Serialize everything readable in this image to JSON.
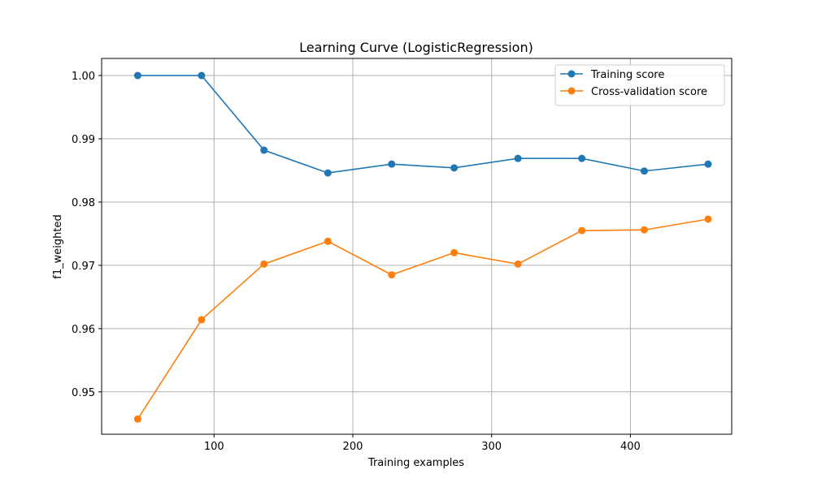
{
  "chart_data": {
    "type": "line",
    "title": "Learning Curve (LogisticRegression)",
    "xlabel": "Training examples",
    "ylabel": "f1_weighted",
    "xlim": [
      19,
      473
    ],
    "ylim": [
      0.9433,
      1.0027
    ],
    "xticks": [
      100,
      200,
      300,
      400
    ],
    "xtick_labels": [
      "100",
      "200",
      "300",
      "400"
    ],
    "yticks": [
      0.95,
      0.96,
      0.97,
      0.98,
      0.99,
      1.0
    ],
    "ytick_labels": [
      "0.95",
      "0.96",
      "0.97",
      "0.98",
      "0.99",
      "1.00"
    ],
    "grid": true,
    "legend_position": "top-right",
    "x": [
      45,
      91,
      136,
      182,
      228,
      273,
      319,
      365,
      410,
      456
    ],
    "series": [
      {
        "name": "Training score",
        "color": "#1f77b4",
        "marker": "circle",
        "values": [
          1.0,
          1.0,
          0.9882,
          0.9846,
          0.986,
          0.9854,
          0.9869,
          0.9869,
          0.9849,
          0.986
        ]
      },
      {
        "name": "Cross-validation score",
        "color": "#ff7f0e",
        "marker": "circle",
        "values": [
          0.9457,
          0.9614,
          0.9702,
          0.9738,
          0.9685,
          0.972,
          0.9702,
          0.9755,
          0.9756,
          0.9773
        ]
      }
    ]
  }
}
